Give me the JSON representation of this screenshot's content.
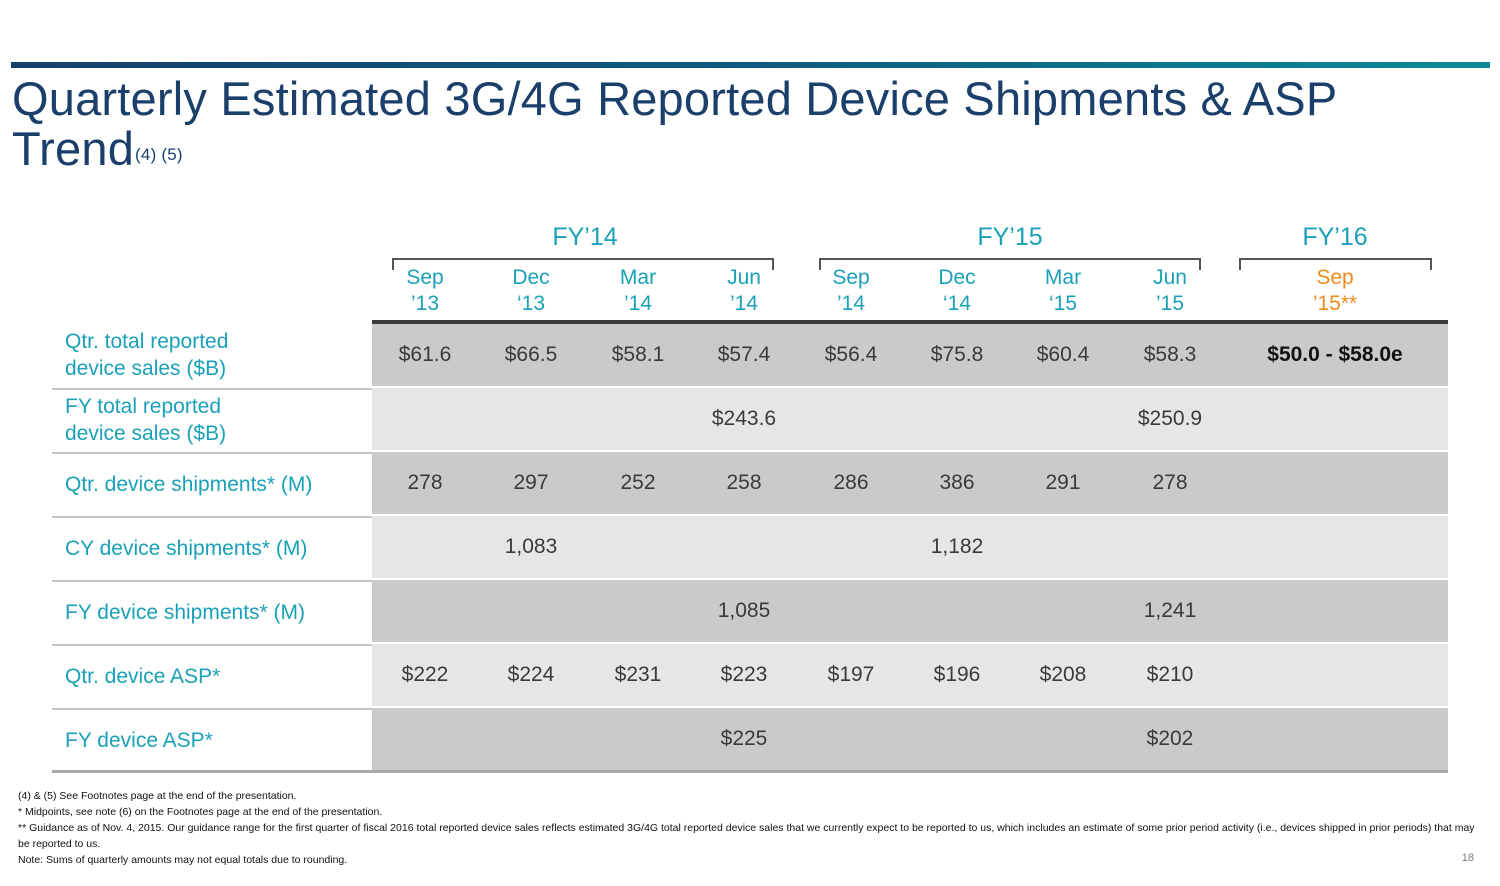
{
  "title": {
    "text": "Quarterly Estimated 3G/4G Reported Device Shipments & ASP Trend",
    "superscript": "(4) (5)"
  },
  "fiscal_years": [
    {
      "label": "FY’14"
    },
    {
      "label": "FY’15"
    },
    {
      "label": "FY’16"
    }
  ],
  "quarters": [
    {
      "month": "Sep",
      "year": "’13"
    },
    {
      "month": "Dec",
      "year": "‘13"
    },
    {
      "month": "Mar",
      "year": "’14"
    },
    {
      "month": "Jun",
      "year": "’14"
    },
    {
      "month": "Sep",
      "year": "’14"
    },
    {
      "month": "Dec",
      "year": "‘14"
    },
    {
      "month": "Mar",
      "year": "‘15"
    },
    {
      "month": "Jun",
      "year": "’15"
    },
    {
      "month": "Sep",
      "year": "’15**"
    }
  ],
  "colors": {
    "title": "#1b3f6b",
    "accent_teal": "#1aa0b8",
    "guidance_orange": "#ef8a1a",
    "row_dark": "#cacaca",
    "row_light": "#e6e6e6"
  },
  "rows": [
    {
      "label": "Qtr. total reported device sales ($B)",
      "values": [
        "$61.6",
        "$66.5",
        "$58.1",
        "$57.4",
        "$56.4",
        "$75.8",
        "$60.4",
        "$58.3",
        "$50.0 - $58.0e"
      ]
    },
    {
      "label": "FY total reported device sales ($B)",
      "values": [
        "",
        "",
        "",
        "$243.6",
        "",
        "",
        "",
        "$250.9",
        ""
      ]
    },
    {
      "label": "Qtr. device shipments* (M)",
      "values": [
        "278",
        "297",
        "252",
        "258",
        "286",
        "386",
        "291",
        "278",
        ""
      ]
    },
    {
      "label": "CY device shipments* (M)",
      "values": [
        "",
        "1,083",
        "",
        "",
        "",
        "1,182",
        "",
        "",
        ""
      ]
    },
    {
      "label": "FY device shipments* (M)",
      "values": [
        "",
        "",
        "",
        "1,085",
        "",
        "",
        "",
        "1,241",
        ""
      ]
    },
    {
      "label": "Qtr. device ASP*",
      "values": [
        "$222",
        "$224",
        "$231",
        "$223",
        "$197",
        "$196",
        "$208",
        "$210",
        ""
      ]
    },
    {
      "label": "FY device ASP*",
      "values": [
        "",
        "",
        "",
        "$225",
        "",
        "",
        "",
        "$202",
        ""
      ]
    }
  ],
  "footnotes": [
    "(4) & (5) See Footnotes page at the end of the presentation.",
    " * Midpoints, see note (6) on the Footnotes page at the end of the presentation.",
    "** Guidance as of Nov. 4, 2015. Our guidance range for the first quarter of fiscal 2016 total reported device sales reflects estimated 3G/4G total reported device sales that we currently expect to be reported to us, which includes an estimate of some prior period activity (i.e., devices shipped in prior periods) that may be reported to us.",
    "Note: Sums of quarterly amounts may not equal totals due to rounding."
  ],
  "page_number": "18"
}
